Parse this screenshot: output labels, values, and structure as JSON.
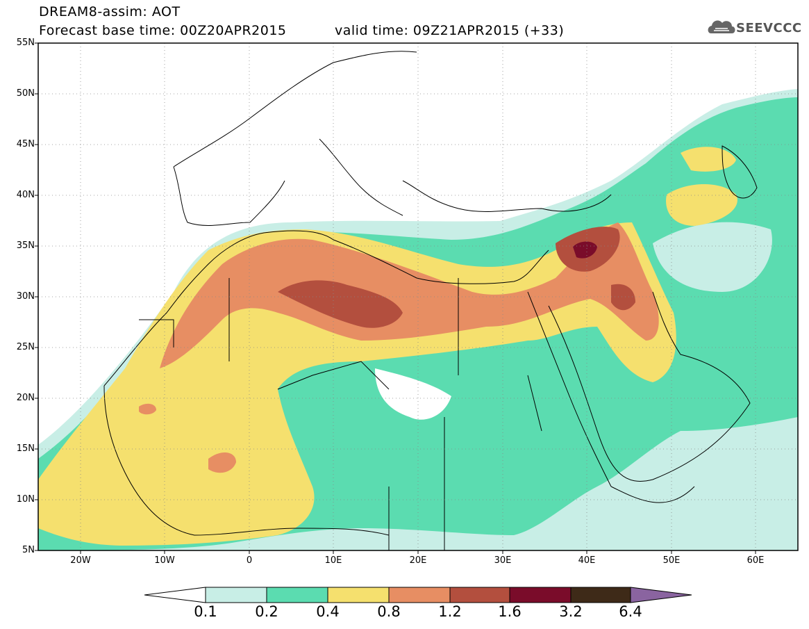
{
  "header": {
    "title": "DREAM8-assim: AOT",
    "base_time": "Forecast base time: 00Z20APR2015",
    "valid_time": "valid time: 09Z21APR2015 (+33)",
    "logo": "SEEVCCC"
  },
  "axes": {
    "y_ticks": [
      "55N",
      "50N",
      "45N",
      "40N",
      "35N",
      "30N",
      "25N",
      "20N",
      "15N",
      "10N",
      "5N"
    ],
    "x_ticks": [
      "20W",
      "10W",
      "0",
      "10E",
      "20E",
      "30E",
      "40E",
      "50E",
      "60E"
    ]
  },
  "colorbar": {
    "levels": [
      "0.1",
      "0.2",
      "0.4",
      "0.8",
      "1.2",
      "1.6",
      "3.2",
      "6.4"
    ],
    "colors": [
      "#ffffff",
      "#c8eee6",
      "#5bdcb0",
      "#f5e06e",
      "#e78e63",
      "#b34f3e",
      "#7a0c2a",
      "#3e2a18",
      "#8a64a0"
    ]
  },
  "colors": {
    "ocean": "#ffffff",
    "coastline": "#000000",
    "grid": "#888888"
  }
}
